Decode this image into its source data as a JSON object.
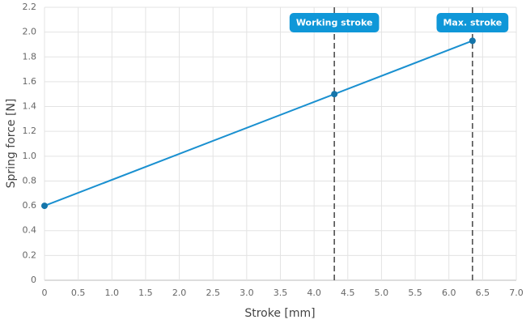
{
  "chart_data": {
    "type": "line",
    "x_label": "Stroke [mm]",
    "y_label": "Spring force [N]",
    "x": [
      0,
      4.3,
      6.35
    ],
    "values": [
      0.6,
      1.5,
      1.93
    ],
    "color": "#1a90d0",
    "marker_color": "#1575aa",
    "xlim": [
      0,
      7
    ],
    "ylim": [
      0,
      2.2
    ],
    "xticks": [
      0,
      0.5,
      {
        "value": 1,
        "label": "1.0"
      },
      1.5,
      {
        "value": 2,
        "label": "2.0"
      },
      2.5,
      {
        "value": 3,
        "label": "3.0"
      },
      3.5,
      {
        "value": 4,
        "label": "4.0"
      },
      4.5,
      {
        "value": 5,
        "label": "5.0"
      },
      5.5,
      {
        "value": 6,
        "label": "6.0"
      },
      6.5,
      {
        "value": 7,
        "label": "7.0"
      }
    ],
    "yticks": [
      0,
      0.2,
      0.4,
      0.6,
      0.8,
      {
        "value": 1,
        "label": "1.0"
      },
      1.2,
      1.4,
      1.6,
      1.8,
      {
        "value": 2,
        "label": "2.0"
      },
      2.2
    ],
    "grid": true,
    "markers": [
      {
        "x": 4.3,
        "label": "Working stroke"
      },
      {
        "x": 6.35,
        "label": "Max. stroke"
      }
    ],
    "annotation_color": "#0f97d8"
  }
}
